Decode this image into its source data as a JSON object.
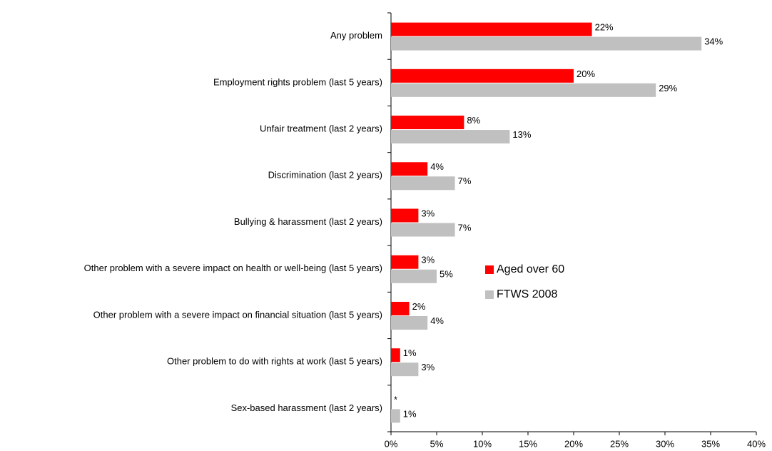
{
  "chart_data": {
    "type": "hbar",
    "categories": [
      "Any problem",
      "Employment rights problem (last 5 years)",
      "Unfair treatment (last 2 years)",
      "Discrimination (last 2 years)",
      "Bullying & harassment (last 2 years)",
      "Other problem with a severe impact on health or well-being (last 5 years)",
      "Other problem with a severe impact on financial situation (last 5 years)",
      "Other problem to do with rights at work (last 5 years)",
      "Sex-based harassment (last 2 years)"
    ],
    "series": [
      {
        "name": "Aged over 60",
        "color": "#ff0000",
        "values": [
          22,
          20,
          8,
          4,
          3,
          3,
          2,
          1,
          null
        ],
        "value_labels": [
          "22%",
          "20%",
          "8%",
          "4%",
          "3%",
          "3%",
          "2%",
          "1%",
          "*"
        ]
      },
      {
        "name": "FTWS 2008",
        "color": "#c0c0c0",
        "values": [
          34,
          29,
          13,
          7,
          7,
          5,
          4,
          3,
          1
        ],
        "value_labels": [
          "34%",
          "29%",
          "13%",
          "7%",
          "7%",
          "5%",
          "4%",
          "3%",
          "1%"
        ]
      }
    ],
    "xlim": [
      0,
      40
    ],
    "xticks": [
      {
        "value": 0,
        "label": "0%"
      },
      {
        "value": 5,
        "label": "5%"
      },
      {
        "value": 10,
        "label": "10%"
      },
      {
        "value": 15,
        "label": "15%"
      },
      {
        "value": 20,
        "label": "20%"
      },
      {
        "value": 25,
        "label": "25%"
      },
      {
        "value": 30,
        "label": "30%"
      },
      {
        "value": 35,
        "label": "35%"
      },
      {
        "value": 40,
        "label": "40%"
      }
    ],
    "grid": false
  }
}
